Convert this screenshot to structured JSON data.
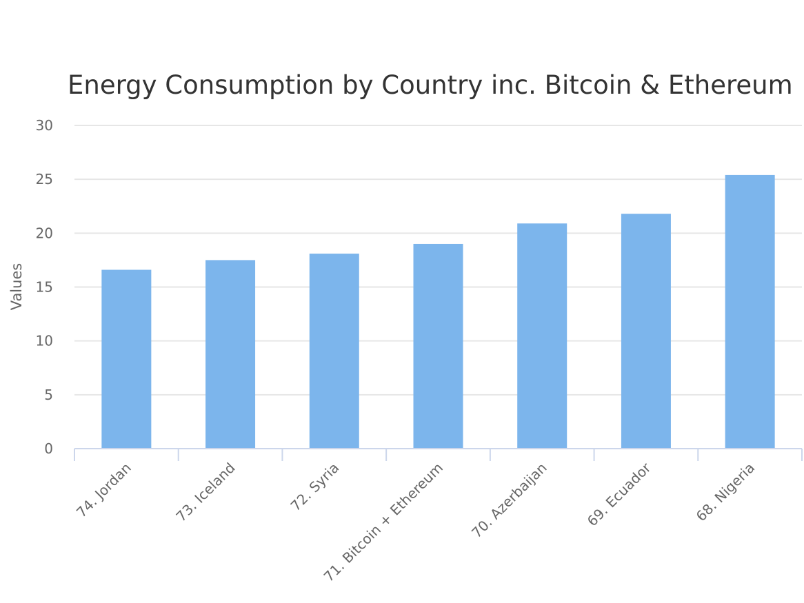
{
  "chart_data": {
    "type": "bar",
    "title": "Energy Consumption by Country inc. Bitcoin & Ethereum",
    "xlabel": "",
    "ylabel": "Values",
    "ylim": [
      0,
      30
    ],
    "yticks": [
      0,
      5,
      10,
      15,
      20,
      25,
      30
    ],
    "grid": true,
    "legend": "none",
    "bar_color": "#7cb5ec",
    "categories": [
      "74. Jordan",
      "73. Iceland",
      "72. Syria",
      "71. Bitcoin + Ethereum",
      "70. Azerbaijan",
      "69. Ecuador",
      "68. Nigeria"
    ],
    "values": [
      16.6,
      17.5,
      18.1,
      19.0,
      20.9,
      21.8,
      25.4
    ]
  }
}
